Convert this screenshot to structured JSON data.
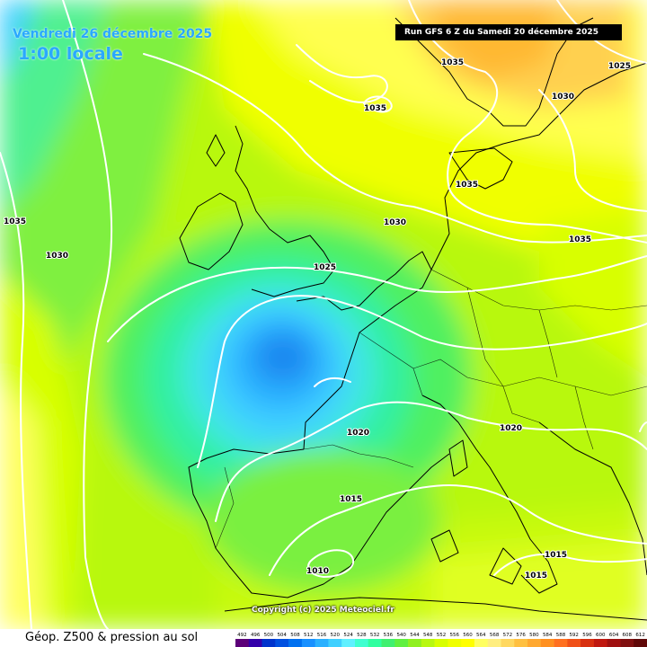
{
  "header": {
    "valid_date": "Vendredi 26 décembre 2025",
    "valid_time": "1:00 locale",
    "run_info": "Run GFS 6 Z du Samedi 20 décembre 2025"
  },
  "copyright": "Copyright (c) 2025 Meteociel.fr",
  "footer": {
    "title": "Géop. Z500 & pression au sol"
  },
  "legend": {
    "ticks": [
      "492",
      "496",
      "500",
      "504",
      "508",
      "512",
      "516",
      "520",
      "524",
      "528",
      "532",
      "536",
      "540",
      "544",
      "548",
      "552",
      "556",
      "560",
      "564",
      "568",
      "572",
      "576",
      "580",
      "584",
      "588",
      "592",
      "596",
      "600",
      "604",
      "608",
      "612"
    ],
    "colors": [
      "#5c0078",
      "#3300aa",
      "#0033cc",
      "#0050e0",
      "#0070f0",
      "#1890ff",
      "#2ab0ff",
      "#40d0ff",
      "#60f0ff",
      "#40ffd0",
      "#30ffa0",
      "#40f070",
      "#60f040",
      "#90f020",
      "#b8f810",
      "#d8ff00",
      "#f0ff00",
      "#ffff00",
      "#ffff60",
      "#ffee80",
      "#ffd860",
      "#ffc040",
      "#ffa830",
      "#ff9020",
      "#ff7020",
      "#f05018",
      "#d83010",
      "#c01810",
      "#a01010",
      "#801010",
      "#600808"
    ]
  },
  "isobars": [
    {
      "label": "1035",
      "cls": "iso-1035-nw"
    },
    {
      "label": "1030",
      "cls": "iso-1030-w"
    },
    {
      "label": "1035",
      "cls": "iso-1035-n1"
    },
    {
      "label": "1035",
      "cls": "iso-1035-n2"
    },
    {
      "label": "1035",
      "cls": "iso-1035-n3"
    },
    {
      "label": "1030",
      "cls": "iso-1030-n"
    },
    {
      "label": "1025",
      "cls": "iso-1025-ne"
    },
    {
      "label": "1030",
      "cls": "iso-1030-ne"
    },
    {
      "label": "1035",
      "cls": "iso-1035-e"
    },
    {
      "label": "1025",
      "cls": "iso-1025-c"
    },
    {
      "label": "1020",
      "cls": "iso-1020-c"
    },
    {
      "label": "1020",
      "cls": "iso-1020-e"
    },
    {
      "label": "1015",
      "cls": "iso-1015-c"
    },
    {
      "label": "1015",
      "cls": "iso-1015-se1"
    },
    {
      "label": "1015",
      "cls": "iso-1015-se2"
    },
    {
      "label": "1010",
      "cls": "iso-1010-s"
    }
  ]
}
